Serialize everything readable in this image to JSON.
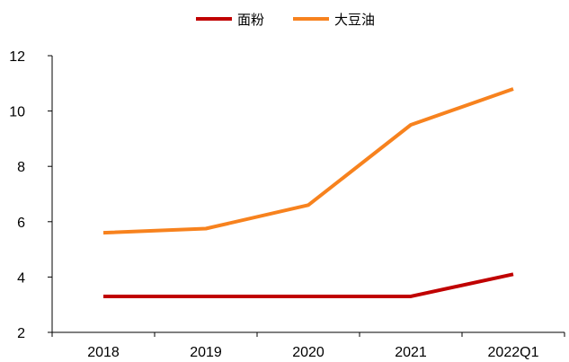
{
  "chart_data": {
    "type": "line",
    "categories": [
      "2018",
      "2019",
      "2020",
      "2021",
      "2022Q1"
    ],
    "series": [
      {
        "name": "面粉",
        "color": "#C00000",
        "values": [
          3.3,
          3.3,
          3.3,
          3.3,
          4.1
        ]
      },
      {
        "name": "大豆油",
        "color": "#F7821E",
        "values": [
          5.6,
          5.75,
          6.6,
          9.5,
          10.8
        ]
      }
    ],
    "ylim": [
      2,
      12
    ],
    "yticks": [
      2,
      4,
      6,
      8,
      10,
      12
    ],
    "title": "",
    "xlabel": "",
    "ylabel": "",
    "legend_position": "top-center",
    "grid": false
  }
}
